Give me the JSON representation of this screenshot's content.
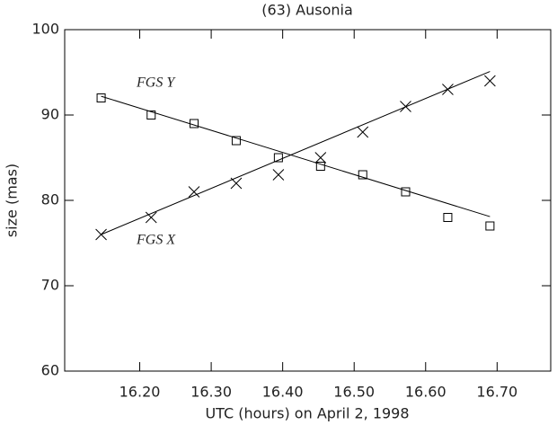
{
  "chart_data": {
    "type": "scatter",
    "title": "(63) Ausonia",
    "x_label": "UTC (hours) on April 2, 1998",
    "y_label": "size (mas)",
    "xlim": [
      16.095,
      16.775
    ],
    "ylim": [
      60,
      100
    ],
    "xticks": [
      {
        "value": 16.2,
        "label": "16.20"
      },
      {
        "value": 16.3,
        "label": "16.30"
      },
      {
        "value": 16.4,
        "label": "16.40"
      },
      {
        "value": 16.5,
        "label": "16.50"
      },
      {
        "value": 16.6,
        "label": "16.60"
      },
      {
        "value": 16.7,
        "label": "16.70"
      }
    ],
    "yticks": [
      60,
      70,
      80,
      90,
      100
    ],
    "series": [
      {
        "name": "FGS Y",
        "marker": "square",
        "color": "#000000",
        "x": [
          16.146,
          16.216,
          16.276,
          16.335,
          16.394,
          16.453,
          16.512,
          16.572,
          16.631,
          16.69
        ],
        "values": [
          92,
          90,
          89,
          87,
          85,
          84,
          83,
          81,
          78,
          77
        ]
      },
      {
        "name": "FGS X",
        "marker": "x",
        "color": "#000000",
        "x": [
          16.146,
          16.216,
          16.276,
          16.335,
          16.394,
          16.453,
          16.512,
          16.572,
          16.631,
          16.69
        ],
        "values": [
          76,
          78,
          81,
          82,
          83,
          85,
          88,
          91,
          93,
          94
        ]
      },
      {
        "marker": "line",
        "color": "#000000",
        "x": [
          16.146,
          16.69
        ],
        "values": [
          92.2,
          78.1
        ]
      },
      {
        "marker": "line",
        "color": "#000000",
        "x": [
          16.146,
          16.69
        ],
        "values": [
          76.0,
          95.1
        ]
      }
    ]
  }
}
